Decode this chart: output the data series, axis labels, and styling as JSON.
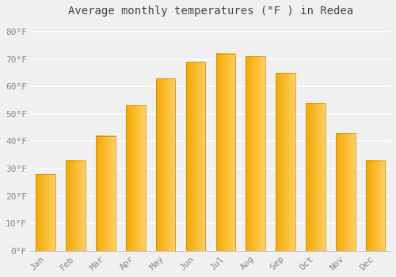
{
  "title": "Average monthly temperatures (°F ) in Redea",
  "months": [
    "Jan",
    "Feb",
    "Mar",
    "Apr",
    "May",
    "Jun",
    "Jul",
    "Aug",
    "Sep",
    "Oct",
    "Nov",
    "Dec"
  ],
  "values": [
    28,
    33,
    42,
    53,
    63,
    69,
    72,
    71,
    65,
    54,
    43,
    33
  ],
  "bar_color_left": "#F5A800",
  "bar_color_right": "#FFD060",
  "bar_edge_color": "#C8880A",
  "ylim": [
    0,
    84
  ],
  "yticks": [
    0,
    10,
    20,
    30,
    40,
    50,
    60,
    70,
    80
  ],
  "ylabel_suffix": "°F",
  "background_color": "#f0f0f0",
  "grid_color": "#ffffff",
  "title_fontsize": 10,
  "tick_fontsize": 8,
  "font_family": "monospace",
  "bar_width": 0.65
}
